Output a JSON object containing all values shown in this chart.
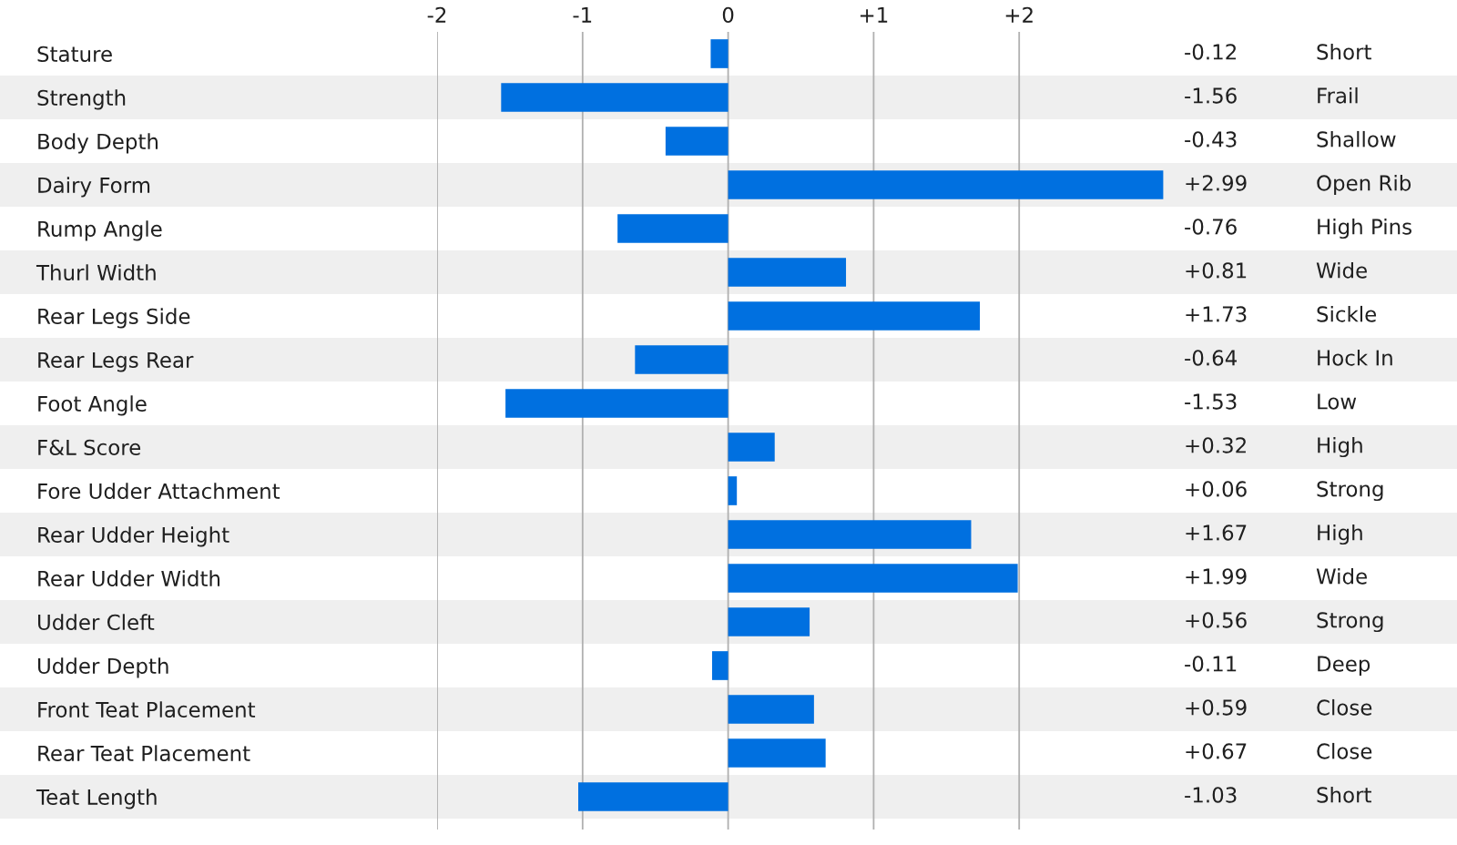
{
  "chart_data": {
    "type": "bar",
    "orientation": "horizontal",
    "grid": "x",
    "categories": [
      "Stature",
      "Strength",
      "Body Depth",
      "Dairy Form",
      "Rump Angle",
      "Thurl Width",
      "Rear Legs Side",
      "Rear Legs Rear",
      "Foot Angle",
      "F&L Score",
      "Fore Udder Attachment",
      "Rear Udder Height",
      "Rear Udder Width",
      "Udder Cleft",
      "Udder Depth",
      "Front Teat Placement",
      "Rear Teat Placement",
      "Teat Length"
    ],
    "values": [
      -0.12,
      -1.56,
      -0.43,
      2.99,
      -0.76,
      0.81,
      1.73,
      -0.64,
      -1.53,
      0.32,
      0.06,
      1.67,
      1.99,
      0.56,
      -0.11,
      0.59,
      0.67,
      -1.03
    ],
    "color": "#0070e0",
    "xlim": [
      -2,
      3
    ],
    "xticks": [
      -2,
      {
        "value": -1,
        "label": "-1"
      },
      0,
      {
        "value": 1,
        "label": "+1"
      },
      {
        "value": 2,
        "label": "+2"
      }
    ],
    "annotations": [
      "-0.12",
      "-1.56",
      "-0.43",
      "+2.99",
      "-0.76",
      "+0.81",
      "+1.73",
      "-0.64",
      "-1.53",
      "+0.32",
      "+0.06",
      "+1.67",
      "+1.99",
      "+0.56",
      "-0.11",
      "+0.59",
      "+0.67",
      "-1.03",
      "Short",
      "Frail",
      "Shallow",
      "Open Rib",
      "High Pins",
      "Wide",
      "Sickle",
      "Hock In",
      "Low",
      "High",
      "Strong",
      "High",
      "Wide",
      "Strong",
      "Deep",
      "Close",
      "Close",
      "Short"
    ]
  }
}
